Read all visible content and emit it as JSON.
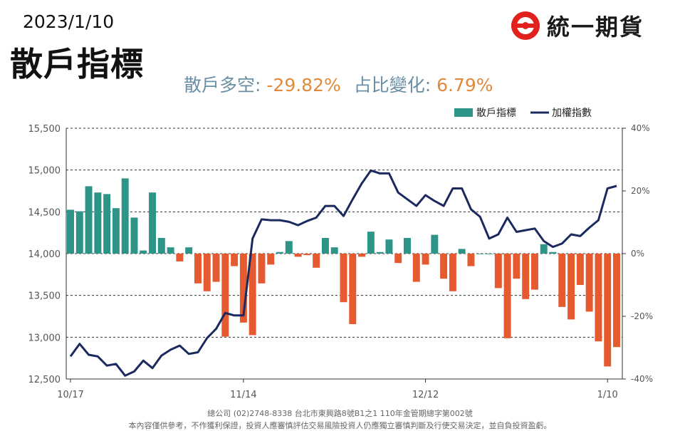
{
  "header": {
    "date": "2023/1/10",
    "title": "散戶指標",
    "logo_text": "統一期貨"
  },
  "summary": {
    "label1": "散戶多空:",
    "value1": "-29.82%",
    "label2": "占比變化:",
    "value2": "6.79%"
  },
  "footer": {
    "line1": "總公司 (02)2748-8338 台北市東興路8號B1之1 110年金管期總字第002號",
    "line2": "本內容僅供參考，不作獲利保證，投資人應審慎評估交易風險投資人仍應獨立審慎判斷及行使交易決定，並自負投資盈虧。"
  },
  "colors": {
    "positive_bar": "#2e9488",
    "negative_bar": "#e55a2e",
    "index_line": "#1a2a5e",
    "logo_red": "#e0211e"
  },
  "chart_data": {
    "type": "bar+line",
    "legend": [
      "散戶指標",
      "加權指數"
    ],
    "legend_position": "top-right",
    "grid": "dashed horizontal",
    "x_tick_labels": [
      {
        "index": 0,
        "label": "10/17"
      },
      {
        "index": 19,
        "label": "11/14"
      },
      {
        "index": 39,
        "label": "12/12"
      },
      {
        "index": 59,
        "label": "1/10"
      }
    ],
    "left_axis": {
      "ylim": [
        12500,
        15500
      ],
      "ticks": [
        "12,500",
        "13,000",
        "13,500",
        "14,000",
        "14,500",
        "15,000",
        "15,500"
      ]
    },
    "right_axis": {
      "ylim": [
        -40,
        40
      ],
      "ticks": [
        "-40%",
        "-20%",
        "0%",
        "20%",
        "40%"
      ]
    },
    "series": [
      {
        "name": "散戶指標",
        "axis": "right",
        "unit": "%",
        "values": [
          14,
          13.5,
          21.5,
          19.5,
          19,
          14.5,
          24,
          11.5,
          1,
          19.5,
          5,
          2,
          -2.5,
          2,
          -9.5,
          -12,
          -9,
          -26.5,
          -4,
          -22,
          -26,
          -9.5,
          -3.5,
          0.5,
          4,
          -1,
          -0.5,
          -4.5,
          5,
          2,
          -15.5,
          -22.5,
          -1,
          7,
          0.5,
          4.5,
          -3,
          5,
          -9,
          -3.5,
          6,
          -8,
          -12,
          1.5,
          -4,
          0,
          0,
          -11,
          -27,
          -8,
          -14.5,
          -11.5,
          3,
          0.5,
          -17,
          -21,
          -10,
          -18.5,
          -28,
          -36,
          -29.82
        ]
      },
      {
        "name": "加權指數",
        "axis": "left",
        "values": [
          12770,
          12920,
          12790,
          12770,
          12660,
          12680,
          12540,
          12590,
          12720,
          12630,
          12780,
          12850,
          12900,
          12800,
          12820,
          12990,
          13100,
          13290,
          13260,
          13260,
          14180,
          14410,
          14400,
          14400,
          14380,
          14340,
          14390,
          14430,
          14570,
          14570,
          14450,
          14650,
          14840,
          14995,
          14960,
          14960,
          14730,
          14650,
          14570,
          14700,
          14630,
          14570,
          14780,
          14780,
          14530,
          14440,
          14180,
          14230,
          14430,
          14260,
          14280,
          14300,
          14150,
          14080,
          14120,
          14230,
          14210,
          14310,
          14400,
          14780,
          14810
        ]
      }
    ]
  }
}
